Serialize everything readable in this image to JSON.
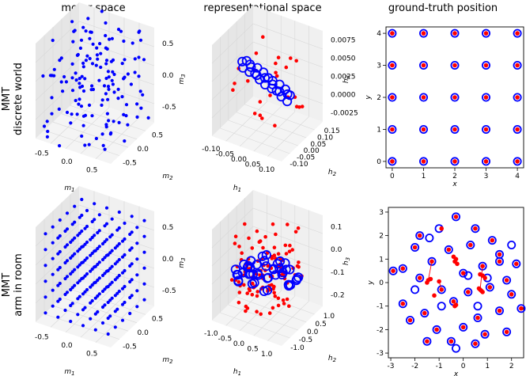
{
  "column_titles": [
    "motor space",
    "representational space",
    "ground-truth position"
  ],
  "row_titles": [
    [
      "MMT",
      "discrete world"
    ],
    [
      "MMT",
      "arm in room"
    ]
  ],
  "colors": {
    "blue": "#0000ff",
    "red": "#ff0000"
  },
  "chart_data": [
    {
      "type": "scatter",
      "panel": "motor space, discrete world",
      "xlabel": "m1",
      "ylabel": "m2",
      "zlabel": "m3",
      "xticks": [
        "-0.5",
        "0.0",
        "0.5"
      ],
      "yticks": [
        "-0.5",
        "0.0",
        "0.5"
      ],
      "zticks": [
        "0.5",
        "0.0",
        "-0.5"
      ],
      "series": [
        {
          "color": "#0000ff",
          "marker": "filled-dot",
          "points": "random 3D cloud in [-0.75,0.75]^3 (~150 points)"
        }
      ]
    },
    {
      "type": "scatter",
      "panel": "representational space, discrete world",
      "xlabel": "h1",
      "ylabel": "h2",
      "zlabel": "h3",
      "xticks": [
        "-0.10",
        "-0.05",
        "0.00",
        "0.05",
        "0.10"
      ],
      "yticks": [
        "-0.10",
        "-0.05",
        "0.00",
        "0.05",
        "0.10",
        "0.15"
      ],
      "zticks": [
        "0.0075",
        "0.0050",
        "0.0025",
        "0.0000",
        "-0.0025"
      ],
      "series": [
        {
          "color": "#0000ff",
          "marker": "open-circle",
          "description": "25 points on a flat plane"
        },
        {
          "color": "#ff0000",
          "marker": "filled-dot",
          "description": "25 points, same positions, spread in h3"
        }
      ]
    },
    {
      "type": "scatter",
      "panel": "ground-truth position, discrete world",
      "xlabel": "x",
      "ylabel": "y",
      "xlim": [
        -0.2,
        4.2
      ],
      "ylim": [
        -0.2,
        4.2
      ],
      "xticks": [
        "0",
        "1",
        "2",
        "3",
        "4"
      ],
      "yticks": [
        "0",
        "1",
        "2",
        "3",
        "4"
      ],
      "series": [
        {
          "color": "#0000ff",
          "marker": "open-circle",
          "x": [
            0,
            1,
            2,
            3,
            4,
            0,
            1,
            2,
            3,
            4,
            0,
            1,
            2,
            3,
            4,
            0,
            1,
            2,
            3,
            4,
            0,
            1,
            2,
            3,
            4
          ],
          "y": [
            0,
            0,
            0,
            0,
            0,
            1,
            1,
            1,
            1,
            1,
            2,
            2,
            2,
            2,
            2,
            3,
            3,
            3,
            3,
            3,
            4,
            4,
            4,
            4,
            4
          ]
        },
        {
          "color": "#ff0000",
          "marker": "filled-dot",
          "x": [
            0,
            1,
            2,
            3,
            4,
            0,
            1,
            2,
            3,
            4,
            0,
            1,
            2,
            3,
            4,
            0,
            1,
            2,
            3,
            4,
            0,
            1,
            2,
            3,
            4
          ],
          "y": [
            0,
            0,
            0,
            0,
            0,
            1,
            1,
            1,
            1,
            1,
            2,
            2,
            2,
            2,
            2,
            3,
            3,
            3,
            3,
            3,
            4,
            4,
            4,
            4,
            4
          ]
        }
      ]
    },
    {
      "type": "scatter",
      "panel": "motor space, arm in room",
      "xlabel": "m1",
      "ylabel": "m2",
      "zlabel": "m3",
      "xticks": [
        "-0.5",
        "0.0",
        "0.5"
      ],
      "yticks": [
        "-0.5",
        "0.0",
        "0.5"
      ],
      "zticks": [
        "0.5",
        "0.0",
        "-0.5"
      ],
      "series": [
        {
          "color": "#0000ff",
          "marker": "filled-dot",
          "points": "regular 6x6x6 grid in [-0.75,0.75]^3"
        }
      ]
    },
    {
      "type": "scatter",
      "panel": "representational space, arm in room",
      "xlabel": "h1",
      "ylabel": "h2",
      "zlabel": "h3",
      "xticks": [
        "-1.0",
        "-0.5",
        "0.0",
        "0.5",
        "1.0"
      ],
      "yticks": [
        "-1.0",
        "-0.5",
        "0.0",
        "0.5",
        "1.0"
      ],
      "zticks": [
        "0.1",
        "0.0",
        "-0.1",
        "-0.2"
      ],
      "series": [
        {
          "color": "#0000ff",
          "marker": "open-circle",
          "description": "ring-shaped set on a plane"
        },
        {
          "color": "#ff0000",
          "marker": "filled-dot",
          "description": "scattered points around the ring"
        }
      ]
    },
    {
      "type": "scatter",
      "panel": "ground-truth position, arm in room",
      "xlabel": "x",
      "ylabel": "y",
      "xlim": [
        -3.1,
        2.5
      ],
      "ylim": [
        -3.2,
        3.2
      ],
      "xticks": [
        "-3",
        "-2",
        "-1",
        "0",
        "1",
        "2"
      ],
      "yticks": [
        "3",
        "2",
        "1",
        "0",
        "-1",
        "-2",
        "-3"
      ],
      "series": [
        {
          "color": "#0000ff",
          "marker": "open-circle",
          "x": [
            -0.3,
            -1.0,
            0.5,
            -1.8,
            1.2,
            -2.0,
            -0.6,
            0.3,
            1.5,
            2.2,
            -2.5,
            -1.3,
            0.0,
            0.8,
            1.8,
            -2.9,
            -1.8,
            -0.9,
            0.2,
            1.1,
            2.0,
            -2.5,
            -1.6,
            -0.4,
            0.6,
            1.5,
            2.4,
            -2.2,
            -1.1,
            0.0,
            0.9,
            1.8,
            -1.5,
            -0.5,
            0.5,
            1.5,
            -0.9,
            0.2,
            1.0,
            -0.3,
            -1.4,
            0.6,
            -2.0,
            2.0
          ],
          "y": [
            2.8,
            2.3,
            2.3,
            2.0,
            1.8,
            1.5,
            1.4,
            1.6,
            1.2,
            0.8,
            0.6,
            0.9,
            0.4,
            0.7,
            0.1,
            0.5,
            0.2,
            -0.3,
            -0.4,
            -0.2,
            -0.5,
            -0.9,
            -1.3,
            -0.8,
            -1.5,
            -1.2,
            -1.1,
            -1.6,
            -2.0,
            -1.9,
            -2.2,
            -2.1,
            -2.5,
            -2.5,
            -2.6,
            0.9,
            -1.0,
            0.3,
            0.2,
            -2.8,
            1.9,
            -1.0,
            -0.3,
            1.6
          ]
        },
        {
          "color": "#ff0000",
          "marker": "filled-dot",
          "x": [
            -0.3,
            -0.9,
            0.5,
            -1.8,
            1.2,
            -2.0,
            -0.6,
            0.3,
            1.5,
            2.2,
            -2.5,
            -1.3,
            0.0,
            0.8,
            1.8,
            -2.9,
            -1.8,
            -0.9,
            0.2,
            1.1,
            2.0,
            -2.5,
            -1.6,
            -0.4,
            0.6,
            1.5,
            2.4,
            -2.2,
            -1.1,
            0.0,
            0.9,
            1.8,
            -1.5,
            -0.5,
            0.5,
            1.5,
            -0.35,
            -0.3,
            -0.25,
            -0.4,
            0.7,
            0.75,
            0.8,
            0.65,
            -1.45,
            -1.5,
            -1.35,
            -0.35,
            -0.3,
            0.8,
            0.9,
            0.7,
            -1.0,
            -1.2
          ],
          "y": [
            2.8,
            2.3,
            2.3,
            2.0,
            1.8,
            1.5,
            1.4,
            1.6,
            1.2,
            0.8,
            0.6,
            0.9,
            0.4,
            0.7,
            0.1,
            0.5,
            0.2,
            -0.3,
            -0.4,
            -0.2,
            -0.5,
            -0.9,
            -1.3,
            -0.8,
            -1.5,
            -1.2,
            -1.1,
            -1.6,
            -2.0,
            -1.9,
            -2.2,
            -2.1,
            -2.5,
            -2.5,
            -2.6,
            0.9,
            0.9,
            1.0,
            0.8,
            1.1,
            -0.3,
            -0.35,
            -0.4,
            -0.25,
            0.1,
            0.0,
            0.15,
            -1.0,
            -0.95,
            0.3,
            0.2,
            0.35,
            0.05,
            -0.55
          ]
        }
      ]
    }
  ]
}
